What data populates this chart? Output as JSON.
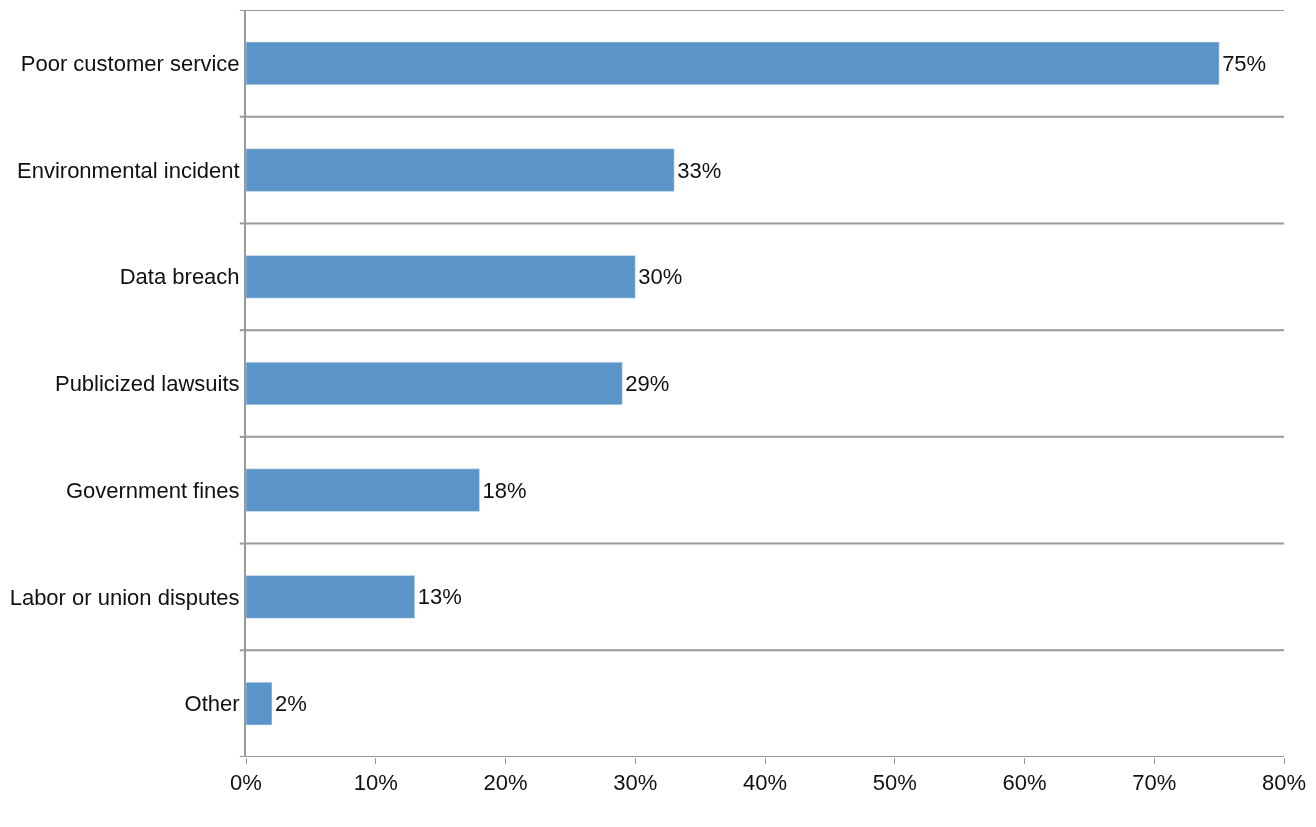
{
  "chart_data": {
    "type": "bar",
    "orientation": "horizontal",
    "categories": [
      "Poor customer service",
      "Environmental incident",
      "Data breach",
      "Publicized lawsuits",
      "Government fines",
      "Labor or union disputes",
      "Other"
    ],
    "values": [
      75,
      33,
      30,
      29,
      18,
      13,
      2
    ],
    "value_labels": [
      "75%",
      "33%",
      "30%",
      "29%",
      "18%",
      "13%",
      "2%"
    ],
    "color": "#5b94c9",
    "xlim": [
      0,
      80
    ],
    "xticks": [
      {
        "value": 0,
        "label": "0%"
      },
      {
        "value": 10,
        "label": "10%"
      },
      {
        "value": 20,
        "label": "20%"
      },
      {
        "value": 30,
        "label": "30%"
      },
      {
        "value": 40,
        "label": "40%"
      },
      {
        "value": 50,
        "label": "50%"
      },
      {
        "value": 60,
        "label": "60%"
      },
      {
        "value": 70,
        "label": "70%"
      },
      {
        "value": 80,
        "label": "80%"
      }
    ],
    "grid": "y",
    "legend": false
  }
}
